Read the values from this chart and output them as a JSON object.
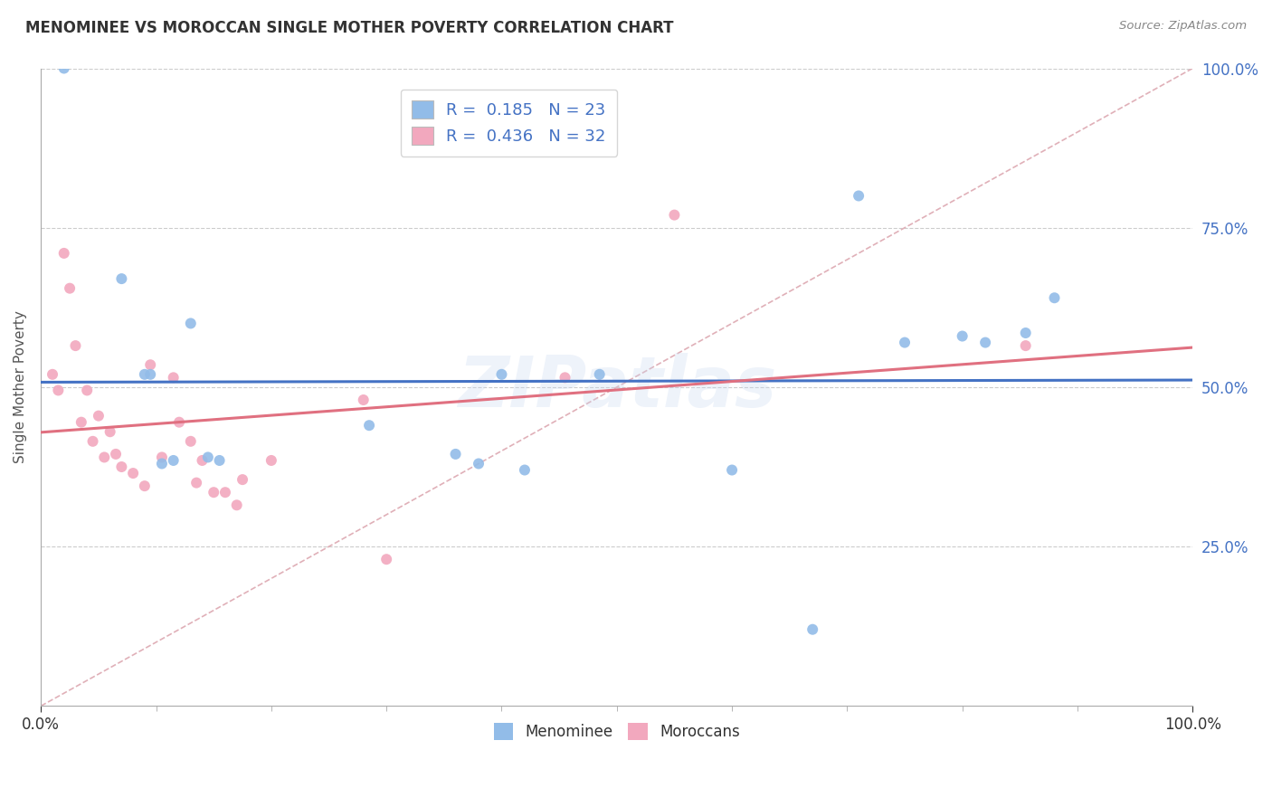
{
  "title": "MENOMINEE VS MOROCCAN SINGLE MOTHER POVERTY CORRELATION CHART",
  "source_text": "Source: ZipAtlas.com",
  "ylabel": "Single Mother Poverty",
  "xlim": [
    0.0,
    1.0
  ],
  "ylim": [
    0.0,
    1.0
  ],
  "xtick_labels_edge": [
    "0.0%",
    "100.0%"
  ],
  "xtick_vals_edge": [
    0.0,
    1.0
  ],
  "xtick_minor_vals": [
    0.1,
    0.2,
    0.3,
    0.4,
    0.5,
    0.6,
    0.7,
    0.8,
    0.9
  ],
  "ytick_labels": [
    "25.0%",
    "50.0%",
    "75.0%",
    "100.0%"
  ],
  "ytick_vals": [
    0.25,
    0.5,
    0.75,
    1.0
  ],
  "watermark": "ZIPatlas",
  "menominee_R": "0.185",
  "menominee_N": "23",
  "moroccan_R": "0.436",
  "moroccan_N": "32",
  "menominee_color": "#92bce8",
  "moroccan_color": "#f2a8be",
  "menominee_line_color": "#4472C4",
  "moroccan_line_color": "#E07080",
  "diagonal_color": "#e0b0b8",
  "background_color": "#ffffff",
  "grid_color": "#cccccc",
  "title_color": "#333333",
  "menominee_x": [
    0.02,
    0.07,
    0.09,
    0.095,
    0.105,
    0.115,
    0.13,
    0.145,
    0.155,
    0.285,
    0.36,
    0.38,
    0.4,
    0.42,
    0.485,
    0.6,
    0.67,
    0.71,
    0.75,
    0.8,
    0.82,
    0.855,
    0.88
  ],
  "menominee_y": [
    1.0,
    0.67,
    0.52,
    0.52,
    0.38,
    0.385,
    0.6,
    0.39,
    0.385,
    0.44,
    0.395,
    0.38,
    0.52,
    0.37,
    0.52,
    0.37,
    0.12,
    0.8,
    0.57,
    0.58,
    0.57,
    0.585,
    0.64
  ],
  "moroccan_x": [
    0.01,
    0.015,
    0.02,
    0.025,
    0.03,
    0.035,
    0.04,
    0.045,
    0.05,
    0.055,
    0.06,
    0.065,
    0.07,
    0.08,
    0.09,
    0.095,
    0.105,
    0.115,
    0.12,
    0.13,
    0.135,
    0.14,
    0.15,
    0.16,
    0.17,
    0.175,
    0.2,
    0.28,
    0.3,
    0.455,
    0.55,
    0.855
  ],
  "moroccan_y": [
    0.52,
    0.495,
    0.71,
    0.655,
    0.565,
    0.445,
    0.495,
    0.415,
    0.455,
    0.39,
    0.43,
    0.395,
    0.375,
    0.365,
    0.345,
    0.535,
    0.39,
    0.515,
    0.445,
    0.415,
    0.35,
    0.385,
    0.335,
    0.335,
    0.315,
    0.355,
    0.385,
    0.48,
    0.23,
    0.515,
    0.77,
    0.565
  ],
  "legend_color_text": "#4472C4",
  "title_fontsize": 12,
  "label_fontsize": 11,
  "tick_fontsize": 12,
  "marker_size": 75,
  "ytick_color": "#4472C4",
  "xtick_color": "#333333"
}
